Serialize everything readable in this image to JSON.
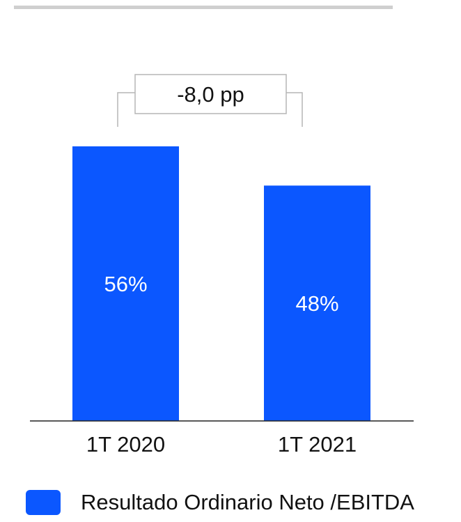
{
  "chart_data": {
    "type": "bar",
    "categories": [
      "1T 2020",
      "1T 2021"
    ],
    "values": [
      56,
      48
    ],
    "value_labels": [
      "56%",
      "48%"
    ],
    "unit": "%",
    "series": [
      {
        "name": "Resultado Ordinario Neto /EBITDA",
        "values": [
          56,
          48
        ]
      }
    ],
    "annotation": "-8,0 pp",
    "ylim": [
      0,
      56
    ],
    "grid": false,
    "legend_position": "bottom",
    "bar_color": "#0b57ff",
    "label_color": "#ffffff"
  },
  "legend": {
    "label": "Resultado Ordinario Neto /EBITDA",
    "color": "#0b57ff"
  }
}
